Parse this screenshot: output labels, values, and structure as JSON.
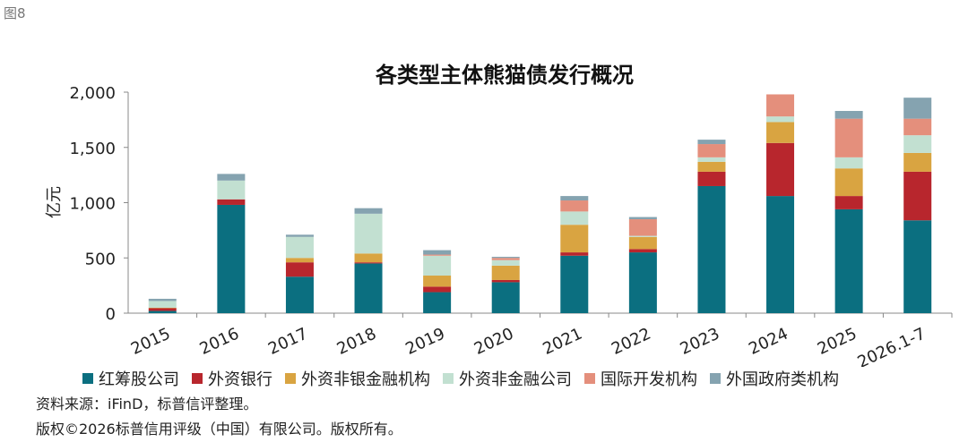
{
  "figure_label": "图8",
  "source": "资料来源：iFinD，标普信评整理。",
  "copyright": "版权©2026标普信用评级（中国）有限公司。版权所有。",
  "chart_data": {
    "type": "bar",
    "stacked": true,
    "title": "各类型主体熊猫债发行概况",
    "xlabel": "",
    "ylabel": "亿元",
    "ylim": [
      0,
      2000
    ],
    "yticks": [
      "0",
      "500",
      "1,000",
      "1,500",
      "2,000"
    ],
    "grid": false,
    "legend_position": "bottom",
    "categories": [
      "2015",
      "2016",
      "2017",
      "2018",
      "2019",
      "2020",
      "2021",
      "2022",
      "2023",
      "2024",
      "2025",
      "2026.1-7"
    ],
    "series": [
      {
        "name": "红筹股公司",
        "color": "#0b6f80",
        "values": [
          20,
          980,
          330,
          450,
          190,
          280,
          520,
          550,
          1150,
          1060,
          940,
          840
        ]
      },
      {
        "name": "外资银行",
        "color": "#b8262d",
        "values": [
          25,
          50,
          130,
          10,
          50,
          20,
          30,
          30,
          130,
          480,
          120,
          440
        ]
      },
      {
        "name": "外资非银金融机构",
        "color": "#d9a441",
        "values": [
          5,
          0,
          40,
          80,
          100,
          130,
          250,
          110,
          90,
          190,
          250,
          170
        ]
      },
      {
        "name": "外资非金融公司",
        "color": "#c2e0d1",
        "values": [
          60,
          170,
          190,
          360,
          180,
          50,
          120,
          10,
          40,
          50,
          100,
          160
        ]
      },
      {
        "name": "国际开发机构",
        "color": "#e48f7c",
        "values": [
          0,
          0,
          0,
          0,
          10,
          20,
          100,
          150,
          120,
          200,
          350,
          150
        ]
      },
      {
        "name": "外国政府类机构",
        "color": "#85a3b0",
        "values": [
          20,
          60,
          20,
          50,
          40,
          10,
          40,
          20,
          40,
          0,
          70,
          190
        ]
      }
    ]
  }
}
